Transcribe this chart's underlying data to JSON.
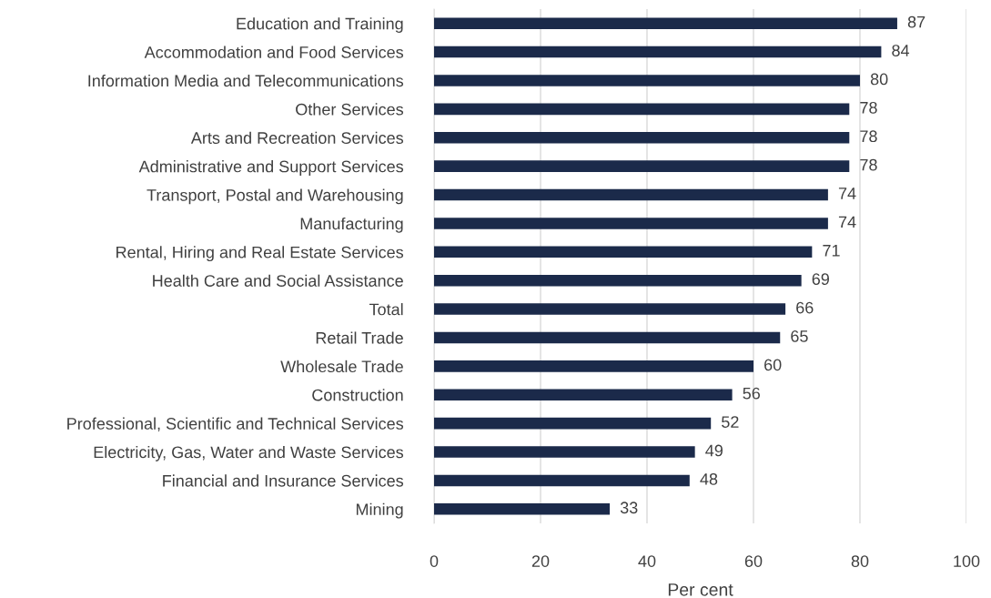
{
  "chart_data": {
    "type": "bar",
    "orientation": "horizontal",
    "xlabel": "Per cent",
    "categories": [
      "Education and Training",
      "Accommodation and Food Services",
      "Information Media and Telecommunications",
      "Other Services",
      "Arts and Recreation Services",
      "Administrative and Support Services",
      "Transport, Postal and Warehousing",
      "Manufacturing",
      "Rental, Hiring and Real Estate Services",
      "Health Care and Social Assistance",
      "Total",
      "Retail Trade",
      "Wholesale Trade",
      "Construction",
      "Professional, Scientific and Technical Services",
      "Electricity, Gas, Water and Waste Services",
      "Financial and Insurance Services",
      "Mining"
    ],
    "values": [
      87,
      84,
      80,
      78,
      78,
      78,
      74,
      74,
      71,
      69,
      66,
      65,
      60,
      56,
      52,
      49,
      48,
      33
    ],
    "color": "#1b2a4a",
    "xlim": [
      0,
      100
    ],
    "xticks": [
      0,
      20,
      40,
      60,
      80,
      100
    ],
    "grid": "x",
    "data_labels": true
  }
}
